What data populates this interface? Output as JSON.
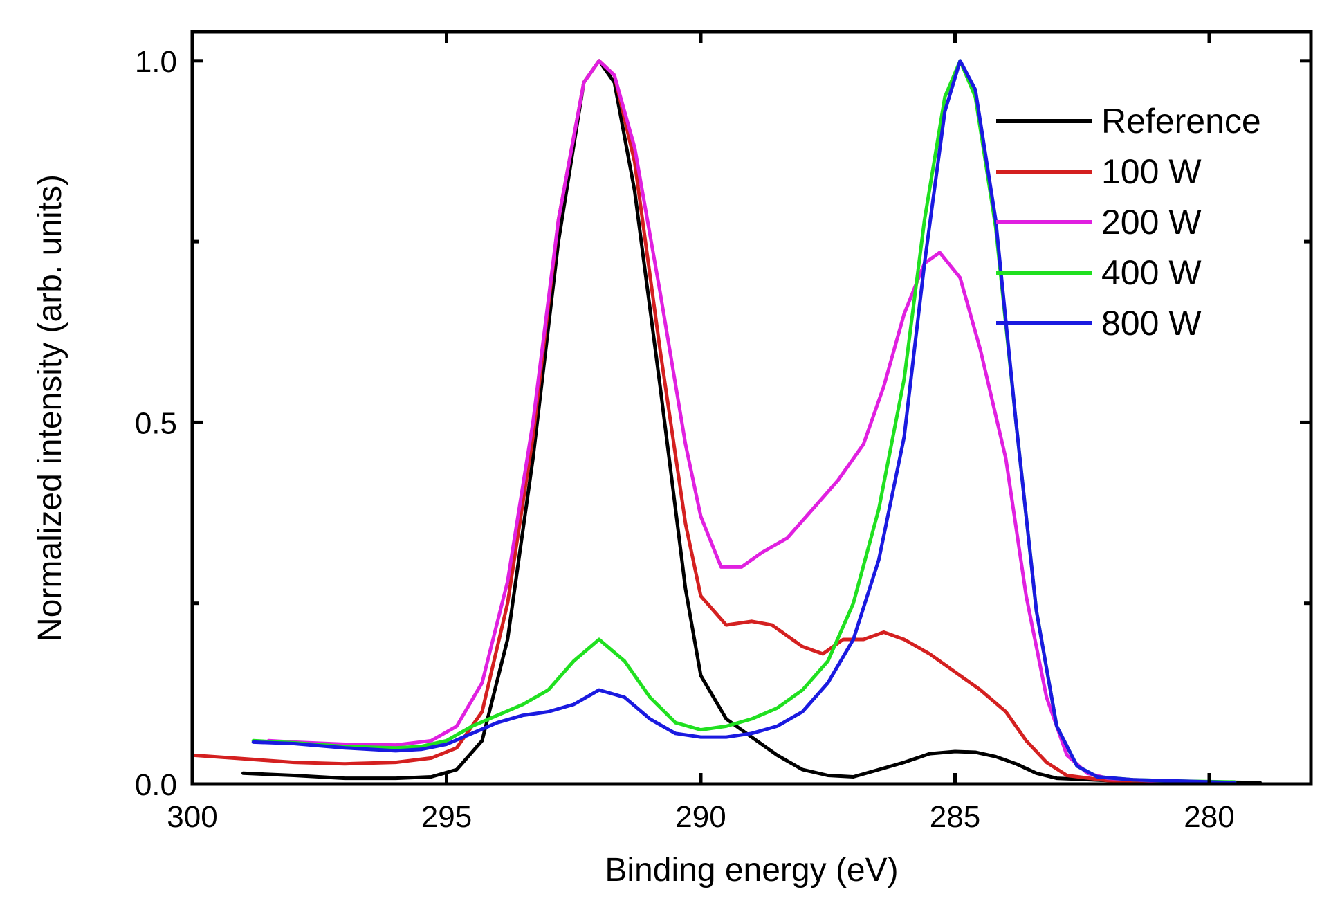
{
  "chart_data": {
    "type": "line",
    "title": "",
    "xlabel": "Binding energy (eV)",
    "ylabel": "Normalized intensity  (arb. units)",
    "xlim": [
      300,
      278
    ],
    "ylim": [
      0,
      1.0
    ],
    "x_reversed": true,
    "xticks": [
      300,
      295,
      290,
      285,
      280
    ],
    "xtick_labels": [
      "300",
      "295",
      "290",
      "285",
      "280"
    ],
    "yticks": [
      0.0,
      0.5,
      1.0
    ],
    "ytick_labels": [
      "0.0",
      "0.5",
      "1.0"
    ],
    "y_minor_ticks": [
      0.25,
      0.75
    ],
    "grid": false,
    "legend_position": "top-right",
    "series": [
      {
        "name": "Reference",
        "color": "#000000",
        "points": [
          [
            299.0,
            0.015
          ],
          [
            298.0,
            0.012
          ],
          [
            297.0,
            0.008
          ],
          [
            296.0,
            0.008
          ],
          [
            295.3,
            0.01
          ],
          [
            294.8,
            0.02
          ],
          [
            294.3,
            0.06
          ],
          [
            293.8,
            0.2
          ],
          [
            293.3,
            0.45
          ],
          [
            292.8,
            0.75
          ],
          [
            292.3,
            0.97
          ],
          [
            292.0,
            1.0
          ],
          [
            291.7,
            0.97
          ],
          [
            291.3,
            0.82
          ],
          [
            290.8,
            0.55
          ],
          [
            290.3,
            0.27
          ],
          [
            290.0,
            0.15
          ],
          [
            289.5,
            0.09
          ],
          [
            289.0,
            0.065
          ],
          [
            288.5,
            0.04
          ],
          [
            288.0,
            0.02
          ],
          [
            287.5,
            0.012
          ],
          [
            287.0,
            0.01
          ],
          [
            286.5,
            0.02
          ],
          [
            286.0,
            0.03
          ],
          [
            285.5,
            0.042
          ],
          [
            285.0,
            0.045
          ],
          [
            284.6,
            0.044
          ],
          [
            284.2,
            0.038
          ],
          [
            283.8,
            0.028
          ],
          [
            283.4,
            0.015
          ],
          [
            283.0,
            0.008
          ],
          [
            282.0,
            0.005
          ],
          [
            281.0,
            0.003
          ],
          [
            280.0,
            0.003
          ],
          [
            279.0,
            0.002
          ]
        ]
      },
      {
        "name": "100 W",
        "color": "#d42020",
        "points": [
          [
            300.0,
            0.04
          ],
          [
            299.0,
            0.035
          ],
          [
            298.0,
            0.03
          ],
          [
            297.0,
            0.028
          ],
          [
            296.0,
            0.03
          ],
          [
            295.3,
            0.036
          ],
          [
            294.8,
            0.05
          ],
          [
            294.3,
            0.1
          ],
          [
            293.8,
            0.25
          ],
          [
            293.3,
            0.48
          ],
          [
            292.8,
            0.78
          ],
          [
            292.3,
            0.97
          ],
          [
            292.0,
            1.0
          ],
          [
            291.7,
            0.98
          ],
          [
            291.3,
            0.86
          ],
          [
            290.8,
            0.6
          ],
          [
            290.3,
            0.36
          ],
          [
            290.0,
            0.26
          ],
          [
            289.5,
            0.22
          ],
          [
            289.0,
            0.225
          ],
          [
            288.6,
            0.22
          ],
          [
            288.0,
            0.19
          ],
          [
            287.6,
            0.18
          ],
          [
            287.2,
            0.2
          ],
          [
            286.8,
            0.2
          ],
          [
            286.4,
            0.21
          ],
          [
            286.0,
            0.2
          ],
          [
            285.5,
            0.18
          ],
          [
            285.0,
            0.155
          ],
          [
            284.5,
            0.13
          ],
          [
            284.0,
            0.1
          ],
          [
            283.6,
            0.06
          ],
          [
            283.2,
            0.03
          ],
          [
            282.8,
            0.012
          ],
          [
            282.0,
            0.005
          ],
          [
            281.0,
            0.003
          ],
          [
            279.5,
            0.0
          ]
        ]
      },
      {
        "name": "200 W",
        "color": "#e020e0",
        "points": [
          [
            298.5,
            0.06
          ],
          [
            298.0,
            0.058
          ],
          [
            297.0,
            0.055
          ],
          [
            296.0,
            0.054
          ],
          [
            295.3,
            0.06
          ],
          [
            294.8,
            0.08
          ],
          [
            294.3,
            0.14
          ],
          [
            293.8,
            0.28
          ],
          [
            293.3,
            0.5
          ],
          [
            292.8,
            0.78
          ],
          [
            292.3,
            0.97
          ],
          [
            292.0,
            1.0
          ],
          [
            291.7,
            0.98
          ],
          [
            291.3,
            0.88
          ],
          [
            290.8,
            0.68
          ],
          [
            290.3,
            0.47
          ],
          [
            290.0,
            0.37
          ],
          [
            289.6,
            0.3
          ],
          [
            289.2,
            0.3
          ],
          [
            288.8,
            0.32
          ],
          [
            288.3,
            0.34
          ],
          [
            287.8,
            0.38
          ],
          [
            287.3,
            0.42
          ],
          [
            286.8,
            0.47
          ],
          [
            286.4,
            0.55
          ],
          [
            286.0,
            0.65
          ],
          [
            285.6,
            0.72
          ],
          [
            285.3,
            0.735
          ],
          [
            284.9,
            0.7
          ],
          [
            284.5,
            0.6
          ],
          [
            284.0,
            0.45
          ],
          [
            283.6,
            0.26
          ],
          [
            283.2,
            0.12
          ],
          [
            282.8,
            0.04
          ],
          [
            282.4,
            0.015
          ],
          [
            282.0,
            0.008
          ],
          [
            281.0,
            0.004
          ],
          [
            280.0,
            0.002
          ]
        ]
      },
      {
        "name": "400 W",
        "color": "#20e020",
        "points": [
          [
            298.8,
            0.06
          ],
          [
            298.0,
            0.057
          ],
          [
            297.0,
            0.052
          ],
          [
            296.0,
            0.05
          ],
          [
            295.5,
            0.052
          ],
          [
            295.0,
            0.06
          ],
          [
            294.5,
            0.08
          ],
          [
            294.0,
            0.095
          ],
          [
            293.5,
            0.11
          ],
          [
            293.0,
            0.13
          ],
          [
            292.5,
            0.17
          ],
          [
            292.0,
            0.2
          ],
          [
            291.5,
            0.17
          ],
          [
            291.0,
            0.12
          ],
          [
            290.5,
            0.085
          ],
          [
            290.0,
            0.075
          ],
          [
            289.5,
            0.08
          ],
          [
            289.0,
            0.09
          ],
          [
            288.5,
            0.105
          ],
          [
            288.0,
            0.13
          ],
          [
            287.5,
            0.17
          ],
          [
            287.0,
            0.25
          ],
          [
            286.5,
            0.38
          ],
          [
            286.0,
            0.56
          ],
          [
            285.6,
            0.78
          ],
          [
            285.2,
            0.95
          ],
          [
            284.9,
            1.0
          ],
          [
            284.6,
            0.95
          ],
          [
            284.2,
            0.77
          ],
          [
            283.8,
            0.5
          ],
          [
            283.4,
            0.24
          ],
          [
            283.0,
            0.08
          ],
          [
            282.6,
            0.025
          ],
          [
            282.2,
            0.01
          ],
          [
            281.5,
            0.006
          ],
          [
            280.5,
            0.004
          ],
          [
            279.5,
            0.003
          ]
        ]
      },
      {
        "name": "800 W",
        "color": "#1a1ae0",
        "points": [
          [
            298.8,
            0.058
          ],
          [
            298.0,
            0.056
          ],
          [
            297.0,
            0.05
          ],
          [
            296.0,
            0.046
          ],
          [
            295.5,
            0.048
          ],
          [
            295.0,
            0.055
          ],
          [
            294.5,
            0.07
          ],
          [
            294.0,
            0.085
          ],
          [
            293.5,
            0.095
          ],
          [
            293.0,
            0.1
          ],
          [
            292.5,
            0.11
          ],
          [
            292.0,
            0.13
          ],
          [
            291.5,
            0.12
          ],
          [
            291.0,
            0.09
          ],
          [
            290.5,
            0.07
          ],
          [
            290.0,
            0.065
          ],
          [
            289.5,
            0.065
          ],
          [
            289.0,
            0.07
          ],
          [
            288.5,
            0.08
          ],
          [
            288.0,
            0.1
          ],
          [
            287.5,
            0.14
          ],
          [
            287.0,
            0.2
          ],
          [
            286.5,
            0.31
          ],
          [
            286.0,
            0.48
          ],
          [
            285.6,
            0.72
          ],
          [
            285.2,
            0.93
          ],
          [
            284.9,
            1.0
          ],
          [
            284.6,
            0.96
          ],
          [
            284.2,
            0.78
          ],
          [
            283.8,
            0.5
          ],
          [
            283.4,
            0.24
          ],
          [
            283.0,
            0.08
          ],
          [
            282.6,
            0.025
          ],
          [
            282.2,
            0.01
          ],
          [
            281.5,
            0.006
          ],
          [
            280.5,
            0.004
          ],
          [
            279.5,
            0.002
          ]
        ]
      }
    ]
  }
}
